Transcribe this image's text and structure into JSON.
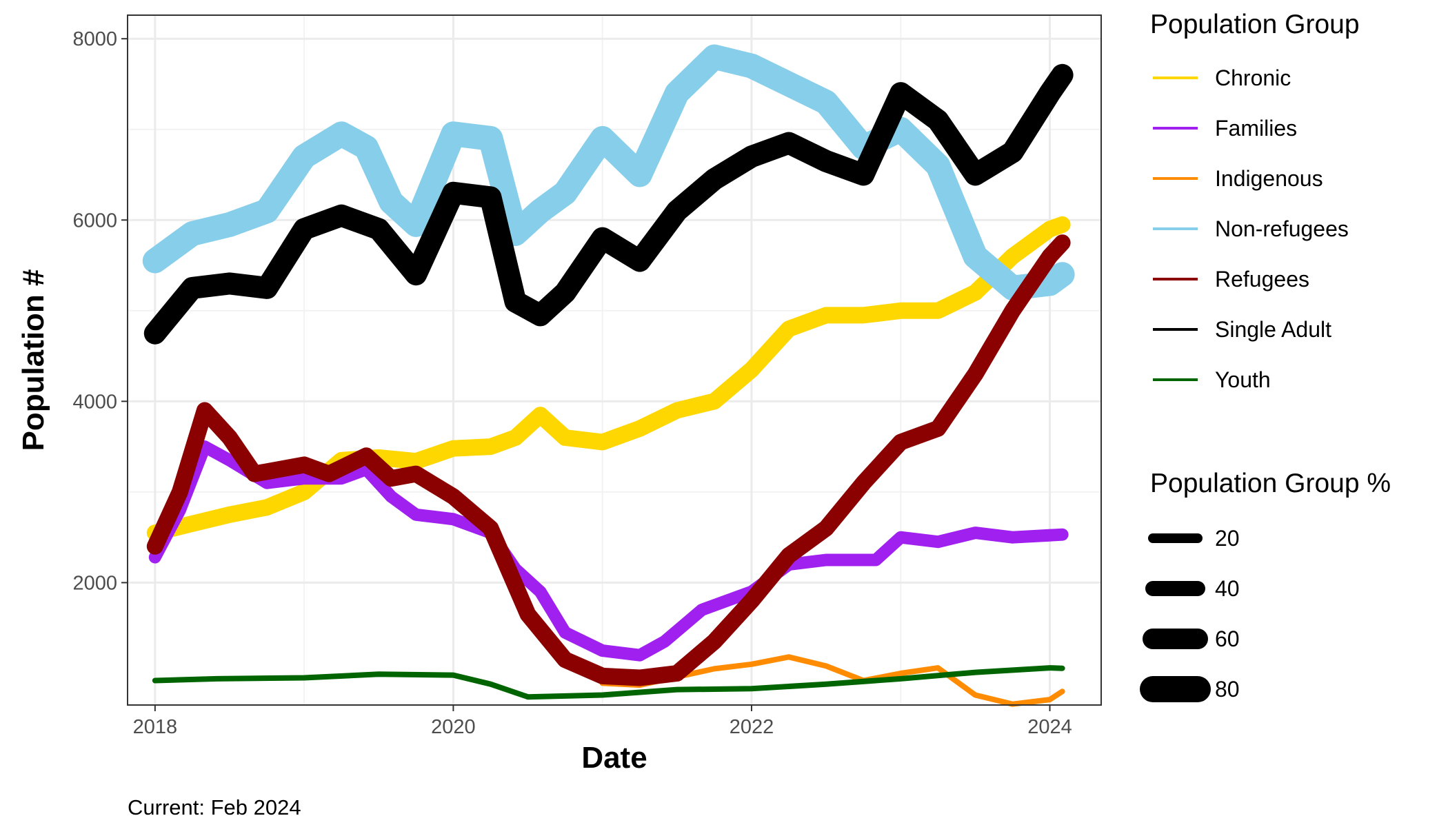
{
  "chart_data": {
    "type": "line",
    "xlabel": "Date",
    "ylabel": "Population #",
    "caption": "Current: Feb 2024",
    "xlim": [
      "2017-10-25",
      "2024-05-05"
    ],
    "ylim": [
      650,
      8260
    ],
    "x_ticks": [
      "2018",
      "2020",
      "2022",
      "2024"
    ],
    "y_ticks": [
      2000,
      4000,
      6000,
      8000
    ],
    "grid": true,
    "legend": {
      "position": "right",
      "color_title": "Population Group",
      "size_title": "Population Group %",
      "size_items": [
        {
          "label": "20",
          "width": 14
        },
        {
          "label": "40",
          "width": 22
        },
        {
          "label": "60",
          "width": 30
        },
        {
          "label": "80",
          "width": 38
        }
      ]
    },
    "series": [
      {
        "name": "Chronic",
        "color": "#FFD700",
        "width": 24,
        "points": [
          [
            "2018-01",
            2550
          ],
          [
            "2018-04",
            2650
          ],
          [
            "2018-07",
            2750
          ],
          [
            "2018-10",
            2830
          ],
          [
            "2019-01",
            3000
          ],
          [
            "2019-04",
            3350
          ],
          [
            "2019-07",
            3380
          ],
          [
            "2019-10",
            3340
          ],
          [
            "2020-01",
            3480
          ],
          [
            "2020-04",
            3500
          ],
          [
            "2020-06",
            3600
          ],
          [
            "2020-08",
            3850
          ],
          [
            "2020-10",
            3600
          ],
          [
            "2021-01",
            3550
          ],
          [
            "2021-04",
            3700
          ],
          [
            "2021-07",
            3900
          ],
          [
            "2021-10",
            4000
          ],
          [
            "2022-01",
            4350
          ],
          [
            "2022-04",
            4800
          ],
          [
            "2022-07",
            4950
          ],
          [
            "2022-10",
            4950
          ],
          [
            "2023-01",
            5000
          ],
          [
            "2023-04",
            5000
          ],
          [
            "2023-07",
            5200
          ],
          [
            "2023-10",
            5600
          ],
          [
            "2024-01",
            5900
          ],
          [
            "2024-02",
            5950
          ]
        ]
      },
      {
        "name": "Families",
        "color": "#A020F0",
        "width": 18,
        "points": [
          [
            "2018-01",
            2280
          ],
          [
            "2018-03",
            2800
          ],
          [
            "2018-05",
            3500
          ],
          [
            "2018-07",
            3350
          ],
          [
            "2018-10",
            3100
          ],
          [
            "2019-01",
            3150
          ],
          [
            "2019-04",
            3150
          ],
          [
            "2019-06",
            3250
          ],
          [
            "2019-08",
            2950
          ],
          [
            "2019-10",
            2750
          ],
          [
            "2020-01",
            2700
          ],
          [
            "2020-04",
            2550
          ],
          [
            "2020-06",
            2150
          ],
          [
            "2020-08",
            1900
          ],
          [
            "2020-10",
            1450
          ],
          [
            "2021-01",
            1250
          ],
          [
            "2021-04",
            1200
          ],
          [
            "2021-06",
            1350
          ],
          [
            "2021-09",
            1700
          ],
          [
            "2022-01",
            1900
          ],
          [
            "2022-04",
            2200
          ],
          [
            "2022-07",
            2250
          ],
          [
            "2022-11",
            2250
          ],
          [
            "2023-01",
            2500
          ],
          [
            "2023-04",
            2450
          ],
          [
            "2023-07",
            2550
          ],
          [
            "2023-10",
            2500
          ],
          [
            "2024-02",
            2530
          ]
        ]
      },
      {
        "name": "Indigenous",
        "color": "#FF8C00",
        "width": 8,
        "points": [
          [
            "2021-01",
            890
          ],
          [
            "2021-04",
            870
          ],
          [
            "2021-07",
            960
          ],
          [
            "2021-10",
            1050
          ],
          [
            "2022-01",
            1100
          ],
          [
            "2022-04",
            1180
          ],
          [
            "2022-07",
            1080
          ],
          [
            "2022-10",
            920
          ],
          [
            "2023-01",
            1000
          ],
          [
            "2023-04",
            1060
          ],
          [
            "2023-07",
            760
          ],
          [
            "2023-10",
            660
          ],
          [
            "2024-01",
            710
          ],
          [
            "2024-02",
            800
          ]
        ]
      },
      {
        "name": "Non-refugees",
        "color": "#87CEEB",
        "width": 36,
        "points": [
          [
            "2018-01",
            5550
          ],
          [
            "2018-04",
            5850
          ],
          [
            "2018-07",
            5950
          ],
          [
            "2018-10",
            6100
          ],
          [
            "2019-01",
            6700
          ],
          [
            "2019-04",
            6950
          ],
          [
            "2019-06",
            6800
          ],
          [
            "2019-08",
            6200
          ],
          [
            "2019-10",
            5950
          ],
          [
            "2020-01",
            6950
          ],
          [
            "2020-04",
            6900
          ],
          [
            "2020-06",
            5850
          ],
          [
            "2020-08",
            6100
          ],
          [
            "2020-10",
            6300
          ],
          [
            "2021-01",
            6900
          ],
          [
            "2021-04",
            6500
          ],
          [
            "2021-07",
            7400
          ],
          [
            "2021-10",
            7800
          ],
          [
            "2022-01",
            7700
          ],
          [
            "2022-04",
            7500
          ],
          [
            "2022-07",
            7300
          ],
          [
            "2022-10",
            6800
          ],
          [
            "2023-01",
            7000
          ],
          [
            "2023-04",
            6600
          ],
          [
            "2023-07",
            5600
          ],
          [
            "2023-10",
            5250
          ],
          [
            "2024-01",
            5300
          ],
          [
            "2024-02",
            5400
          ]
        ]
      },
      {
        "name": "Refugees",
        "color": "#8B0000",
        "width": 24,
        "points": [
          [
            "2018-01",
            2400
          ],
          [
            "2018-03",
            3000
          ],
          [
            "2018-05",
            3900
          ],
          [
            "2018-07",
            3600
          ],
          [
            "2018-09",
            3200
          ],
          [
            "2019-01",
            3300
          ],
          [
            "2019-03",
            3200
          ],
          [
            "2019-06",
            3400
          ],
          [
            "2019-08",
            3150
          ],
          [
            "2019-10",
            3200
          ],
          [
            "2020-01",
            2950
          ],
          [
            "2020-04",
            2600
          ],
          [
            "2020-07",
            1650
          ],
          [
            "2020-10",
            1150
          ],
          [
            "2021-01",
            970
          ],
          [
            "2021-04",
            950
          ],
          [
            "2021-07",
            1000
          ],
          [
            "2021-10",
            1350
          ],
          [
            "2022-01",
            1800
          ],
          [
            "2022-04",
            2300
          ],
          [
            "2022-07",
            2600
          ],
          [
            "2022-10",
            3100
          ],
          [
            "2023-01",
            3550
          ],
          [
            "2023-04",
            3700
          ],
          [
            "2023-07",
            4300
          ],
          [
            "2023-10",
            5000
          ],
          [
            "2024-01",
            5600
          ],
          [
            "2024-02",
            5750
          ]
        ]
      },
      {
        "name": "Single Adult",
        "color": "#000000",
        "width": 32,
        "points": [
          [
            "2018-01",
            4750
          ],
          [
            "2018-04",
            5250
          ],
          [
            "2018-07",
            5300
          ],
          [
            "2018-10",
            5250
          ],
          [
            "2019-01",
            5900
          ],
          [
            "2019-04",
            6050
          ],
          [
            "2019-07",
            5900
          ],
          [
            "2019-10",
            5400
          ],
          [
            "2020-01",
            6300
          ],
          [
            "2020-04",
            6250
          ],
          [
            "2020-06",
            5100
          ],
          [
            "2020-08",
            4950
          ],
          [
            "2020-10",
            5200
          ],
          [
            "2021-01",
            5800
          ],
          [
            "2021-04",
            5550
          ],
          [
            "2021-07",
            6100
          ],
          [
            "2021-10",
            6450
          ],
          [
            "2022-01",
            6700
          ],
          [
            "2022-04",
            6850
          ],
          [
            "2022-07",
            6650
          ],
          [
            "2022-10",
            6500
          ],
          [
            "2023-01",
            7400
          ],
          [
            "2023-04",
            7100
          ],
          [
            "2023-07",
            6500
          ],
          [
            "2023-10",
            6750
          ],
          [
            "2024-01",
            7400
          ],
          [
            "2024-02",
            7600
          ]
        ]
      },
      {
        "name": "Youth",
        "color": "#006400",
        "width": 8,
        "points": [
          [
            "2018-01",
            920
          ],
          [
            "2018-06",
            940
          ],
          [
            "2019-01",
            950
          ],
          [
            "2019-07",
            990
          ],
          [
            "2020-01",
            980
          ],
          [
            "2020-04",
            880
          ],
          [
            "2020-07",
            740
          ],
          [
            "2021-01",
            760
          ],
          [
            "2021-07",
            820
          ],
          [
            "2022-01",
            830
          ],
          [
            "2022-07",
            880
          ],
          [
            "2023-01",
            940
          ],
          [
            "2023-07",
            1010
          ],
          [
            "2024-01",
            1060
          ],
          [
            "2024-02",
            1055
          ]
        ]
      }
    ]
  }
}
